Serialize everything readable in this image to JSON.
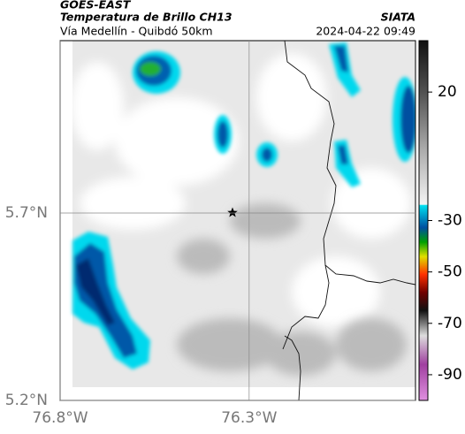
{
  "header": {
    "title": "GOES-EAST",
    "subtitle": "Temperatura de Brillo CH13",
    "source": "SIATA",
    "region": "Vía Medellín - Quibdó 50km",
    "datetime": "2024-04-22 09:49"
  },
  "map": {
    "xlim": [
      -76.8,
      -75.86
    ],
    "ylim": [
      5.2,
      6.16
    ],
    "xticks": [
      {
        "value": -76.8,
        "label": "76.8°W"
      },
      {
        "value": -76.3,
        "label": "76.3°W"
      }
    ],
    "yticks": [
      {
        "value": 5.7,
        "label": "5.7°N"
      },
      {
        "value": 5.2,
        "label": "5.2°N"
      }
    ]
  },
  "colorbar": {
    "lim": [
      40,
      -100
    ],
    "ticks": [
      20,
      -30,
      -50,
      -70,
      -90
    ]
  }
}
